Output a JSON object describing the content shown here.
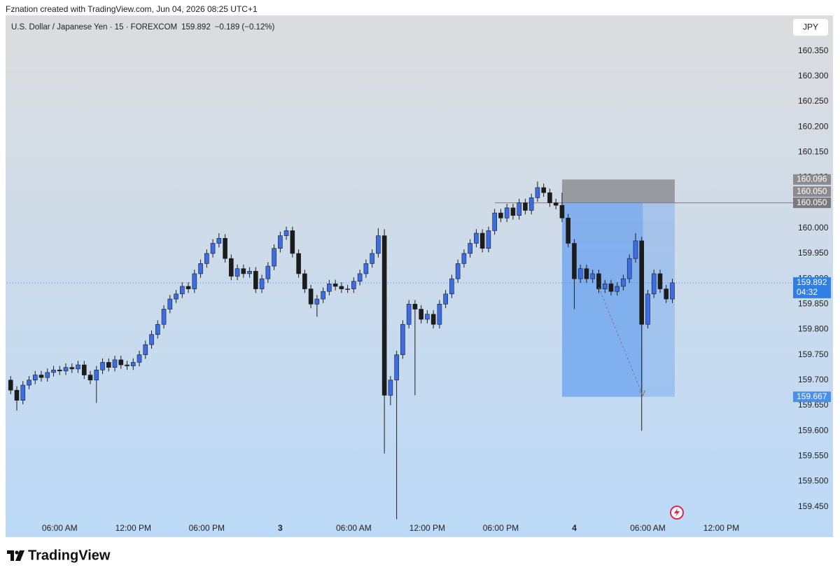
{
  "chart_data": {
    "type": "candlestick",
    "attribution": "Fznation created with TradingView.com, Jun 04, 2026 08:25 UTC+1",
    "symbol": "U.S. Dollar / Japanese Yen · 15 · FOREXCOM",
    "last_price": 159.892,
    "change": "−0.189 (−0.12%)",
    "countdown": "04:32",
    "currency": "JPY",
    "footer_logo": "TradingView",
    "up_color": "#3a6de6",
    "down_color": "#1c1c1c",
    "x": [
      2,
      2.5,
      3,
      3.5,
      4,
      4.5,
      5,
      5.5,
      6,
      6.5,
      7,
      7.5,
      8,
      8.5,
      9,
      9.5,
      10,
      10.5,
      11,
      11.5,
      12,
      12.5,
      13,
      13.5,
      14,
      14.5,
      15,
      15.5,
      16,
      16.5,
      17,
      17.5,
      18,
      18.5,
      19,
      19.5,
      20,
      20.5,
      21,
      21.5,
      22,
      22.5,
      23,
      23.5,
      24,
      24.5,
      25,
      25.5,
      26,
      26.5,
      27,
      27.5,
      28,
      28.5,
      29,
      29.5,
      30,
      30.5,
      31,
      31.5,
      32,
      32.5,
      33,
      33.5,
      34,
      34.5,
      35,
      35.5,
      36,
      36.5,
      37,
      37.5,
      38,
      38.5,
      39,
      39.5,
      40,
      40.5,
      41,
      41.5,
      42,
      42.5,
      43,
      43.5,
      44,
      44.5,
      45,
      45.5,
      46,
      46.5,
      47,
      47.5,
      48,
      48.5,
      49,
      49.5,
      50,
      50.5,
      51,
      51.5,
      52,
      52.5,
      53,
      53.5,
      54,
      54.5,
      55,
      55.5,
      56
    ],
    "open": [
      159.7,
      159.68,
      159.66,
      159.69,
      159.7,
      159.71,
      159.705,
      159.715,
      159.72,
      159.718,
      159.725,
      159.722,
      159.73,
      159.71,
      159.7,
      159.72,
      159.735,
      159.725,
      159.74,
      159.73,
      159.728,
      159.735,
      159.75,
      159.77,
      159.79,
      159.81,
      159.84,
      159.86,
      159.87,
      159.885,
      159.88,
      159.91,
      159.93,
      159.95,
      159.97,
      159.98,
      159.94,
      159.905,
      159.92,
      159.91,
      159.915,
      159.88,
      159.9,
      159.925,
      159.96,
      159.985,
      159.995,
      159.95,
      159.91,
      159.88,
      159.85,
      159.86,
      159.875,
      159.89,
      159.885,
      159.88,
      159.88,
      159.895,
      159.91,
      159.93,
      159.95,
      159.985,
      159.67,
      159.7,
      159.75,
      159.81,
      159.85,
      159.84,
      159.82,
      159.83,
      159.81,
      159.85,
      159.87,
      159.9,
      159.93,
      159.95,
      159.97,
      159.99,
      159.96,
      159.995,
      160.03,
      160.02,
      160.04,
      160.025,
      160.05,
      160.035,
      160.06,
      160.08,
      160.07,
      160.05,
      160.045,
      160.02,
      159.97,
      159.9,
      159.92,
      159.9,
      159.91,
      159.88,
      159.89,
      159.875,
      159.885,
      159.9,
      159.94,
      159.975,
      159.81,
      159.87,
      159.91,
      159.88,
      159.86
    ],
    "high": [
      159.708,
      159.688,
      159.698,
      159.708,
      159.718,
      159.718,
      159.723,
      159.728,
      159.728,
      159.733,
      159.733,
      159.738,
      159.738,
      159.718,
      159.728,
      159.743,
      159.743,
      159.748,
      159.748,
      159.738,
      159.743,
      159.758,
      159.778,
      159.798,
      159.818,
      159.848,
      159.868,
      159.878,
      159.893,
      159.893,
      159.918,
      159.938,
      159.958,
      159.978,
      159.99,
      159.988,
      159.948,
      159.928,
      159.928,
      159.923,
      159.923,
      159.908,
      159.933,
      159.968,
      159.993,
      160.003,
      160.003,
      159.958,
      159.918,
      159.888,
      159.868,
      159.883,
      159.898,
      159.898,
      159.893,
      159.888,
      159.903,
      159.918,
      159.938,
      159.958,
      160.0,
      159.998,
      159.708,
      159.758,
      159.818,
      159.858,
      159.858,
      159.848,
      159.838,
      159.838,
      159.858,
      159.878,
      159.908,
      159.938,
      159.958,
      159.978,
      159.998,
      159.998,
      160.003,
      160.038,
      160.038,
      160.048,
      160.048,
      160.058,
      160.058,
      160.068,
      160.092,
      160.088,
      160.078,
      160.058,
      160.07,
      160.028,
      159.978,
      159.928,
      159.928,
      159.918,
      159.918,
      159.898,
      159.898,
      159.893,
      159.908,
      159.948,
      159.99,
      159.983,
      159.878,
      159.918,
      159.918,
      159.888,
      159.9
    ],
    "low": [
      159.672,
      159.64,
      159.652,
      159.682,
      159.692,
      159.697,
      159.697,
      159.707,
      159.71,
      159.71,
      159.714,
      159.714,
      159.702,
      159.692,
      159.655,
      159.712,
      159.717,
      159.717,
      159.722,
      159.72,
      159.72,
      159.727,
      159.742,
      159.762,
      159.782,
      159.802,
      159.832,
      159.852,
      159.862,
      159.872,
      159.872,
      159.902,
      159.922,
      159.942,
      159.962,
      159.932,
      159.897,
      159.897,
      159.902,
      159.902,
      159.872,
      159.872,
      159.892,
      159.917,
      159.952,
      159.977,
      159.942,
      159.902,
      159.872,
      159.842,
      159.825,
      159.852,
      159.867,
      159.877,
      159.872,
      159.872,
      159.872,
      159.887,
      159.902,
      159.922,
      159.942,
      159.555,
      159.65,
      159.425,
      159.742,
      159.802,
      159.67,
      159.812,
      159.812,
      159.802,
      159.802,
      159.842,
      159.862,
      159.892,
      159.922,
      159.942,
      159.962,
      159.952,
      159.952,
      159.987,
      160.012,
      160.012,
      160.017,
      160.017,
      160.027,
      160.027,
      160.052,
      160.062,
      160.042,
      160.037,
      160.012,
      159.962,
      159.84,
      159.892,
      159.892,
      159.892,
      159.872,
      159.872,
      159.867,
      159.867,
      159.877,
      159.892,
      159.932,
      159.6,
      159.802,
      159.862,
      159.872,
      159.852,
      159.852
    ],
    "close": [
      159.68,
      159.66,
      159.69,
      159.7,
      159.71,
      159.705,
      159.715,
      159.72,
      159.718,
      159.725,
      159.722,
      159.73,
      159.71,
      159.7,
      159.72,
      159.735,
      159.725,
      159.74,
      159.73,
      159.728,
      159.735,
      159.75,
      159.77,
      159.79,
      159.81,
      159.84,
      159.86,
      159.87,
      159.885,
      159.88,
      159.91,
      159.93,
      159.95,
      159.97,
      159.98,
      159.94,
      159.905,
      159.92,
      159.91,
      159.915,
      159.88,
      159.9,
      159.925,
      159.96,
      159.985,
      159.995,
      159.95,
      159.91,
      159.88,
      159.85,
      159.86,
      159.875,
      159.89,
      159.885,
      159.88,
      159.88,
      159.895,
      159.91,
      159.93,
      159.95,
      159.985,
      159.67,
      159.7,
      159.75,
      159.81,
      159.85,
      159.84,
      159.82,
      159.83,
      159.81,
      159.85,
      159.87,
      159.9,
      159.93,
      159.95,
      159.97,
      159.99,
      159.96,
      159.995,
      160.03,
      160.02,
      160.04,
      160.025,
      160.05,
      160.035,
      160.06,
      160.08,
      160.07,
      160.05,
      160.045,
      160.02,
      159.97,
      159.9,
      159.92,
      159.9,
      159.91,
      159.88,
      159.89,
      159.875,
      159.885,
      159.9,
      159.94,
      159.975,
      159.81,
      159.87,
      159.91,
      159.88,
      159.86,
      159.892
    ],
    "xlim": [
      1.7,
      65.4
    ],
    "xticks": [
      {
        "value": 6,
        "label": "06:00 AM"
      },
      {
        "value": 12,
        "label": "12:00 PM"
      },
      {
        "value": 18,
        "label": "06:00 PM"
      },
      {
        "value": 24,
        "label": "3"
      },
      {
        "value": 30,
        "label": "06:00 AM"
      },
      {
        "value": 36,
        "label": "12:00 PM"
      },
      {
        "value": 42,
        "label": "06:00 PM"
      },
      {
        "value": 48,
        "label": "4"
      },
      {
        "value": 54,
        "label": "06:00 AM"
      },
      {
        "value": 60,
        "label": "12:00 PM"
      }
    ],
    "ylim": [
      159.39,
      160.42
    ],
    "yticks": [
      {
        "value": 159.45,
        "label": "159.450"
      },
      {
        "value": 159.5,
        "label": "159.500"
      },
      {
        "value": 159.55,
        "label": "159.550"
      },
      {
        "value": 159.6,
        "label": "159.600"
      },
      {
        "value": 159.65,
        "label": "159.650"
      },
      {
        "value": 159.7,
        "label": "159.700"
      },
      {
        "value": 159.75,
        "label": "159.750"
      },
      {
        "value": 159.8,
        "label": "159.800"
      },
      {
        "value": 159.85,
        "label": "159.850"
      },
      {
        "value": 159.9,
        "label": "159.900"
      },
      {
        "value": 159.95,
        "label": "159.950"
      },
      {
        "value": 160,
        "label": "160.000"
      },
      {
        "value": 160.05,
        "label": "160.050"
      },
      {
        "value": 160.1,
        "label": "160.100"
      },
      {
        "value": 160.15,
        "label": "160.150"
      },
      {
        "value": 160.2,
        "label": "160.200"
      },
      {
        "value": 160.25,
        "label": "160.250"
      },
      {
        "value": 160.3,
        "label": "160.300"
      },
      {
        "value": 160.35,
        "label": "160.350"
      }
    ],
    "position": {
      "entry": {
        "value": 160.05,
        "label": "160.050"
      },
      "stop": 160.096,
      "target": 159.667,
      "x_start": 47.0,
      "x_end": 56.2,
      "x_current": 53.6
    },
    "level": {
      "value": 160.05,
      "label": "160.050",
      "x_start": 41.5
    },
    "arrow": {
      "x": [
        50.0,
        53.6
      ],
      "y": [
        159.883,
        159.669
      ]
    }
  }
}
